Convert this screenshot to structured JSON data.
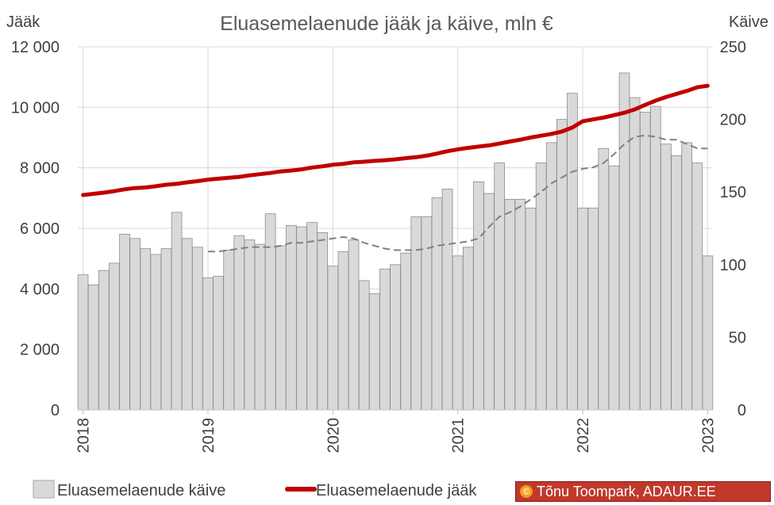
{
  "chart_data": {
    "type": "bar",
    "title": "Eluasemelaenude jääk ja käive, mln €",
    "left_axis_label": "Jääk",
    "right_axis_label": "Käive",
    "left_ylim": [
      0,
      12000
    ],
    "right_ylim": [
      0,
      250
    ],
    "left_ticks": [
      "0",
      "2 000",
      "4 000",
      "6 000",
      "8 000",
      "10 000",
      "12 000"
    ],
    "right_ticks": [
      "0",
      "50",
      "100",
      "150",
      "200",
      "250"
    ],
    "x_tick_labels": [
      "2018",
      "2019",
      "2020",
      "2021",
      "2022",
      "2023"
    ],
    "grid": true,
    "legend_position": "bottom",
    "colors": {
      "bars": "#d9d9d9",
      "bar_border": "#8c8c8c",
      "line": "#c00000",
      "trend": "#808080"
    },
    "series": [
      {
        "name": "Eluasemelaenude käive",
        "type": "bar",
        "axis": "right",
        "values": [
          93,
          86,
          96,
          101,
          121,
          118,
          111,
          107,
          111,
          136,
          118,
          112,
          91,
          92,
          110,
          120,
          117,
          114,
          135,
          113,
          127,
          126,
          129,
          122,
          99,
          109,
          117,
          89,
          80,
          97,
          100,
          108,
          133,
          133,
          146,
          152,
          106,
          112,
          157,
          149,
          170,
          145,
          145,
          139,
          170,
          184,
          200,
          218,
          139,
          139,
          180,
          168,
          232,
          215,
          205,
          209,
          183,
          175,
          184,
          170,
          106
        ]
      },
      {
        "name": "Eluasemelaenude jääk",
        "type": "line",
        "axis": "left",
        "values": [
          7100,
          7140,
          7180,
          7230,
          7290,
          7330,
          7350,
          7390,
          7440,
          7470,
          7520,
          7560,
          7610,
          7640,
          7670,
          7700,
          7750,
          7790,
          7830,
          7880,
          7910,
          7950,
          8010,
          8050,
          8100,
          8130,
          8180,
          8200,
          8230,
          8250,
          8280,
          8320,
          8350,
          8400,
          8470,
          8550,
          8610,
          8660,
          8700,
          8740,
          8800,
          8870,
          8930,
          9000,
          9060,
          9120,
          9200,
          9330,
          9540,
          9600,
          9660,
          9740,
          9820,
          9930,
          10080,
          10220,
          10340,
          10440,
          10540,
          10660,
          10710
        ]
      },
      {
        "type": "line",
        "style": "dashed",
        "axis": "right",
        "values": [
          null,
          null,
          null,
          null,
          null,
          null,
          null,
          null,
          null,
          null,
          null,
          null,
          109,
          109,
          110,
          111,
          112,
          112,
          112,
          113,
          115,
          115,
          116,
          117,
          118,
          119,
          118,
          115,
          113,
          111,
          110,
          110,
          110,
          111,
          113,
          114,
          115,
          116,
          118,
          126,
          133,
          136,
          140,
          145,
          150,
          156,
          160,
          164,
          166,
          167,
          170,
          176,
          183,
          188,
          189,
          188,
          186,
          186,
          183,
          180,
          180
        ]
      }
    ]
  },
  "credit": {
    "symbol": "©",
    "text": "Tõnu Toompark, ADAUR.EE"
  }
}
